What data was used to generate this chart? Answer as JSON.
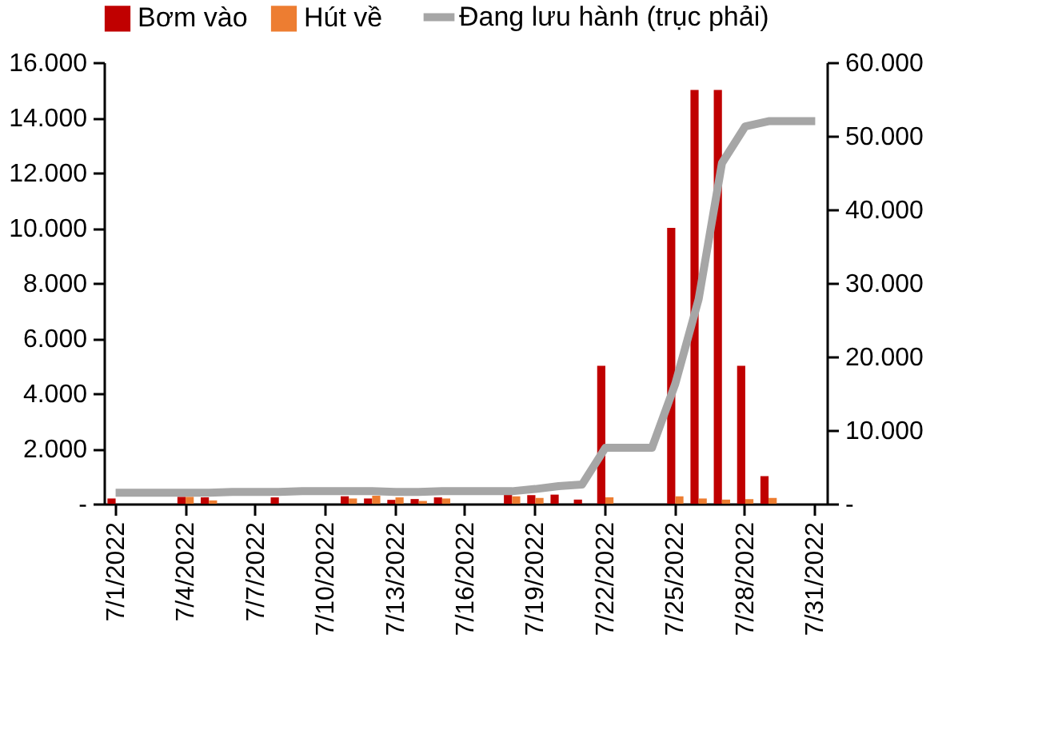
{
  "chart_data": {
    "type": "bar",
    "categories": [
      "7/1/2022",
      null,
      null,
      "7/4/2022",
      null,
      null,
      "7/7/2022",
      null,
      null,
      "7/10/2022",
      null,
      null,
      "7/13/2022",
      null,
      null,
      "7/16/2022",
      null,
      null,
      "7/19/2022",
      null,
      null,
      "7/22/2022",
      null,
      null,
      "7/25/2022",
      null,
      null,
      "7/28/2022",
      null,
      null,
      "7/31/2022"
    ],
    "series": [
      {
        "name": "Bơm vào",
        "color": "#c00000",
        "values": [
          190,
          null,
          null,
          250,
          230,
          null,
          null,
          230,
          null,
          null,
          270,
          190,
          140,
          170,
          230,
          null,
          null,
          330,
          310,
          330,
          150,
          5000,
          null,
          null,
          10000,
          15000,
          15000,
          5000,
          1000,
          null,
          null
        ]
      },
      {
        "name": "Hút về",
        "color": "#ed7d31",
        "values": [
          null,
          null,
          null,
          250,
          120,
          null,
          null,
          null,
          null,
          null,
          190,
          290,
          230,
          100,
          190,
          null,
          null,
          270,
          210,
          null,
          null,
          230,
          null,
          null,
          270,
          190,
          150,
          170,
          210,
          null,
          null
        ]
      },
      {
        "name": "Đang lưu hành (trục phải)",
        "type": "line",
        "axis": "y2",
        "color": "#a6a6a6",
        "values": [
          1500,
          1500,
          1500,
          1500,
          1500,
          1600,
          1600,
          1600,
          1700,
          1700,
          1700,
          1700,
          1600,
          1600,
          1700,
          1700,
          1700,
          1700,
          2000,
          2400,
          2600,
          7600,
          7600,
          7600,
          16300,
          27800,
          46300,
          51300,
          52000,
          52000,
          52000
        ]
      }
    ],
    "ylim": [
      0,
      16000
    ],
    "yticks": [
      {
        "value": 0,
        "label": "-"
      },
      {
        "value": 2000,
        "label": "2.000"
      },
      {
        "value": 4000,
        "label": "4.000"
      },
      {
        "value": 6000,
        "label": "6.000"
      },
      {
        "value": 8000,
        "label": "8.000"
      },
      {
        "value": 10000,
        "label": "10.000"
      },
      {
        "value": 12000,
        "label": "12.000"
      },
      {
        "value": 14000,
        "label": "14.000"
      },
      {
        "value": 16000,
        "label": "16.000"
      }
    ],
    "y2lim": [
      0,
      60000
    ],
    "y2ticks": [
      {
        "value": 0,
        "label": "-"
      },
      {
        "value": 10000,
        "label": "10.000"
      },
      {
        "value": 20000,
        "label": "20.000"
      },
      {
        "value": 30000,
        "label": "30.000"
      },
      {
        "value": 40000,
        "label": "40.000"
      },
      {
        "value": 50000,
        "label": "50.000"
      },
      {
        "value": 60000,
        "label": "60.000"
      }
    ],
    "grid": false,
    "legend": "top"
  }
}
